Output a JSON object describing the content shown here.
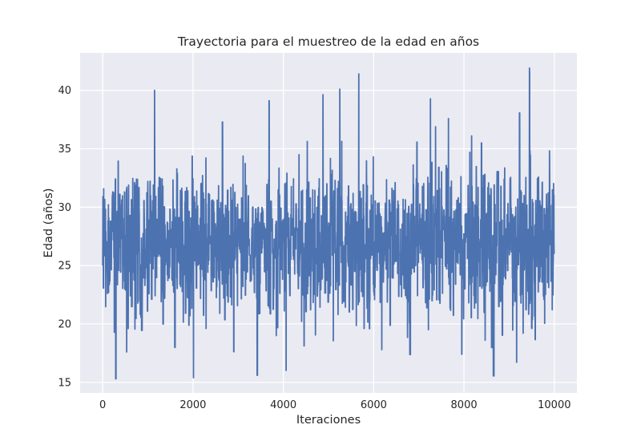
{
  "chart_data": {
    "type": "line",
    "title": "Trayectoria para el muestreo de la edad en años",
    "xlabel": "Iteraciones",
    "ylabel": "Edad (años)",
    "xlim": [
      -500,
      10500
    ],
    "ylim": [
      14.1,
      43.2
    ],
    "x_ticks": [
      0,
      2000,
      4000,
      6000,
      8000,
      10000
    ],
    "y_ticks": [
      15,
      20,
      25,
      30,
      35,
      40
    ],
    "grid": true,
    "legend": "none",
    "n_iterations": 10000,
    "mean": 27.0,
    "typical_range": [
      22,
      32
    ],
    "extremes": [
      {
        "x": 1150,
        "y": 40.0
      },
      {
        "x": 2010,
        "y": 15.4
      },
      {
        "x": 3420,
        "y": 15.6
      },
      {
        "x": 5250,
        "y": 40.1
      },
      {
        "x": 9450,
        "y": 41.9
      },
      {
        "x": 530,
        "y": 17.6
      },
      {
        "x": 6180,
        "y": 17.8
      },
      {
        "x": 7950,
        "y": 17.4
      }
    ],
    "series": [
      {
        "name": "",
        "color": "#4c72b0"
      }
    ]
  },
  "colors": {
    "background": "#ffffff",
    "plot_area": "#eaeaf2",
    "grid": "#ffffff",
    "line": "#4c72b0",
    "text": "#262626"
  }
}
